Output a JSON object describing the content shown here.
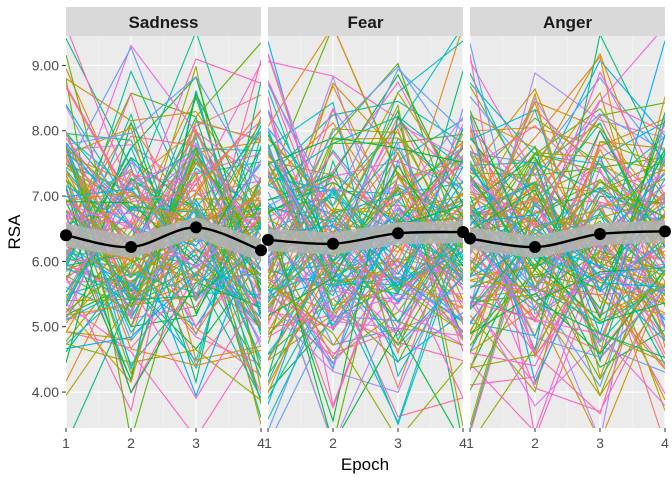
{
  "chart_data": {
    "type": "line",
    "ylabel": "RSA",
    "xlabel": "Epoch",
    "x": [
      1,
      2,
      3,
      4
    ],
    "x_tick_labels": [
      "1",
      "2",
      "3",
      "4"
    ],
    "y_tick_labels": [
      "4.00",
      "5.00",
      "6.00",
      "7.00",
      "8.00",
      "9.00"
    ],
    "y_ticks": [
      4,
      5,
      6,
      7,
      8,
      9
    ],
    "xlim": [
      1,
      4
    ],
    "ylim": [
      3.45,
      9.45
    ],
    "grid": true,
    "panel_background": "#ebebeb",
    "strip_background": "#d9d9d9",
    "mean_line_color": "#000000",
    "ci_band_color": "#b3b3b3",
    "participant_palette": [
      "#f8766d",
      "#e7861b",
      "#d39200",
      "#b79f00",
      "#93aa00",
      "#5eb300",
      "#00ba38",
      "#00bf74",
      "#00c19f",
      "#00bfc4",
      "#00b9e3",
      "#00adfa",
      "#619cff",
      "#ae87ff",
      "#db72fb",
      "#f564e3",
      "#ff61c3",
      "#ff699c"
    ],
    "participant_count": 150,
    "panels": [
      {
        "title": "Sadness",
        "mean": [
          6.4,
          6.22,
          6.52,
          6.17
        ],
        "ci_low": [
          6.22,
          6.05,
          6.36,
          6.0
        ],
        "ci_high": [
          6.58,
          6.39,
          6.68,
          6.34
        ]
      },
      {
        "title": "Fear",
        "mean": [
          6.33,
          6.27,
          6.43,
          6.45
        ],
        "ci_low": [
          6.16,
          6.1,
          6.26,
          6.28
        ],
        "ci_high": [
          6.5,
          6.44,
          6.6,
          6.62
        ]
      },
      {
        "title": "Anger",
        "mean": [
          6.35,
          6.22,
          6.42,
          6.46
        ],
        "ci_low": [
          6.18,
          6.05,
          6.25,
          6.29
        ],
        "ci_high": [
          6.52,
          6.39,
          6.59,
          6.63
        ]
      }
    ]
  }
}
